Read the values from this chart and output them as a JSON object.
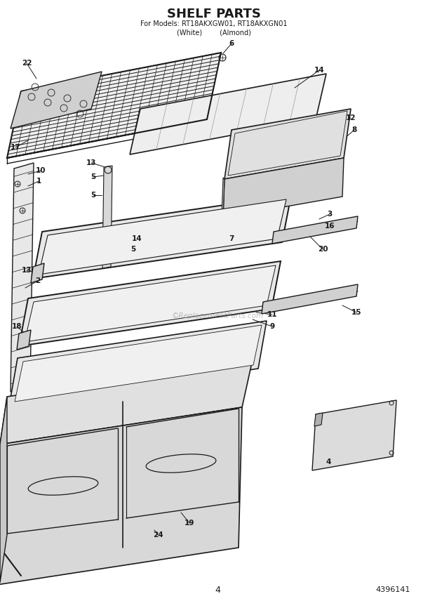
{
  "title": "SHELF PARTS",
  "subtitle_line1": "For Models: RT18AKXGW01, RT18AKXGN01",
  "subtitle_line2": "(White)        (Almond)",
  "page_number": "4",
  "part_number": "4396141",
  "bg_color": "#ffffff",
  "lc": "#1a1a1a",
  "tc": "#1a1a1a",
  "watermark": "©ReplacementParts.com"
}
